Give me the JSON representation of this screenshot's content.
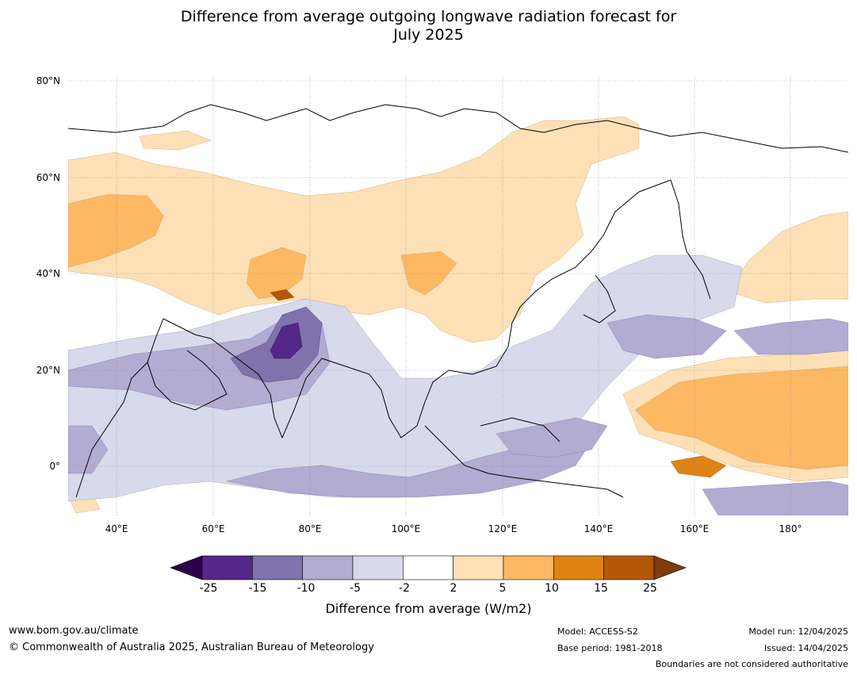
{
  "title_line1": "Difference from average outgoing longwave radiation forecast for",
  "title_line2": "July 2025",
  "lat_labels": [
    "80°N",
    "60°N",
    "40°N",
    "20°N",
    "0°"
  ],
  "lon_labels": [
    "40°E",
    "60°E",
    "80°E",
    "100°E",
    "120°E",
    "140°E",
    "160°E",
    "180°"
  ],
  "colorbar": {
    "ticks": [
      "-25",
      "-15",
      "-10",
      "-5",
      "-2",
      "2",
      "5",
      "10",
      "15",
      "25"
    ],
    "colors": [
      "#2d004b",
      "#542788",
      "#8073ac",
      "#b2abd2",
      "#d8daeb",
      "#ffffff",
      "#fee0b6",
      "#fdb863",
      "#e08214",
      "#b35806",
      "#7f3b08"
    ],
    "label": "Difference from average (W/m2)"
  },
  "footer": {
    "url": "www.bom.gov.au/climate",
    "copyright": "© Commonwealth of Australia 2025, Australian Bureau of Meteorology",
    "model": "Model: ACCESS-S2",
    "base_period": "Base period: 1981-2018",
    "model_run": "Model run: 12/04/2025",
    "issued": "Issued: 14/04/2025",
    "boundaries": "Boundaries are not considered authoritative"
  }
}
